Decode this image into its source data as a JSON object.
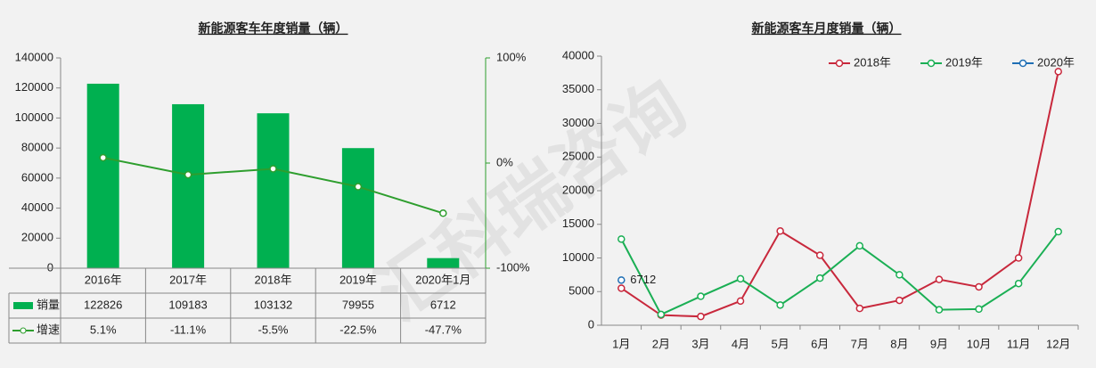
{
  "watermark": "汇科瑞咨询",
  "chart_data": [
    {
      "type": "bar",
      "title": "新能源客车年度销量（辆）",
      "categories": [
        "2016年",
        "2017年",
        "2018年",
        "2019年",
        "2020年1月"
      ],
      "series": [
        {
          "name": "销量",
          "type": "bar",
          "color": "#00b050",
          "values": [
            122826,
            109183,
            103132,
            79955,
            6712
          ]
        },
        {
          "name": "增速",
          "type": "line",
          "axis": "y2",
          "color": "#2e9e2e",
          "values": [
            5.1,
            -11.1,
            -5.5,
            -22.5,
            -47.7
          ],
          "value_labels": [
            "5.1%",
            "-11.1%",
            "-5.5%",
            "-22.5%",
            "-47.7%"
          ]
        }
      ],
      "ylim": [
        0,
        140000
      ],
      "yticks": [
        0,
        20000,
        40000,
        60000,
        80000,
        100000,
        120000,
        140000
      ],
      "y2lim": [
        -100,
        100
      ],
      "y2ticks": [
        {
          "value": -100,
          "label": "-100%"
        },
        {
          "value": 0,
          "label": "0%"
        },
        {
          "value": 100,
          "label": "100%"
        }
      ],
      "data_table": true
    },
    {
      "type": "line",
      "title": "新能源客车月度销量（辆）",
      "categories": [
        "1月",
        "2月",
        "3月",
        "4月",
        "5月",
        "6月",
        "7月",
        "8月",
        "9月",
        "10月",
        "11月",
        "12月"
      ],
      "series": [
        {
          "name": "2018年",
          "color": "#c8283c",
          "values": [
            5500,
            1500,
            1300,
            3600,
            14000,
            10400,
            2500,
            3700,
            6800,
            5700,
            10000,
            37700
          ]
        },
        {
          "name": "2019年",
          "color": "#1aaf54",
          "values": [
            12800,
            1600,
            4300,
            6900,
            3000,
            7000,
            11800,
            7500,
            2300,
            2400,
            6200,
            13900
          ]
        },
        {
          "name": "2020年",
          "color": "#1f6fb5",
          "values": [
            6712,
            null,
            null,
            null,
            null,
            null,
            null,
            null,
            null,
            null,
            null,
            null
          ],
          "labeled": true
        }
      ],
      "ylim": [
        0,
        40000
      ],
      "yticks": [
        0,
        5000,
        10000,
        15000,
        20000,
        25000,
        30000,
        35000,
        40000
      ],
      "legend": "top-right"
    }
  ]
}
